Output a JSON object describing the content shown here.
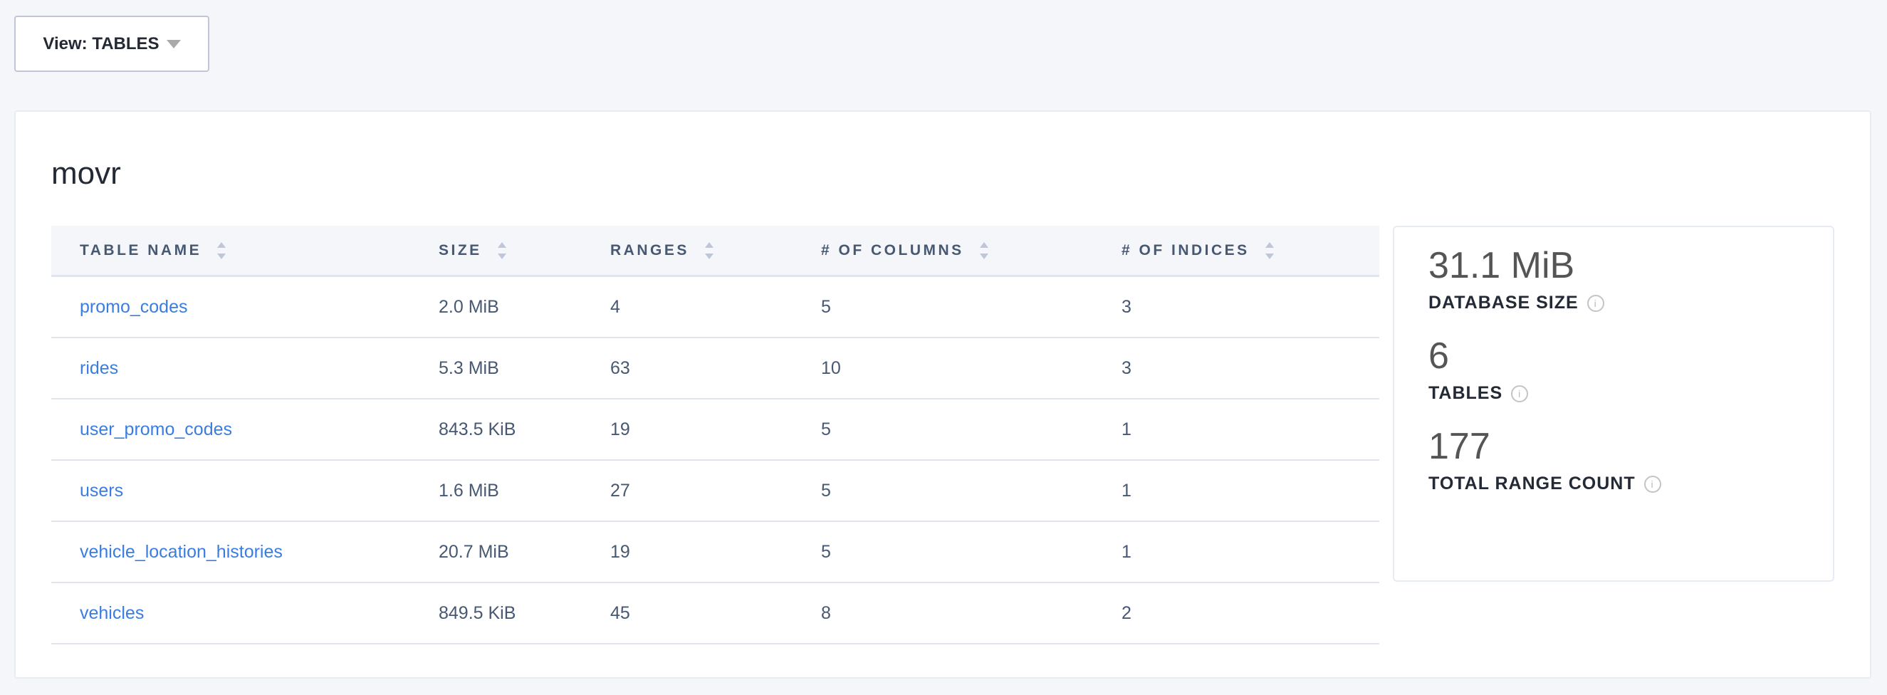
{
  "view_dropdown": {
    "label": "View: TABLES"
  },
  "database": {
    "name": "movr"
  },
  "table": {
    "columns": [
      "TABLE NAME",
      "SIZE",
      "RANGES",
      "# OF COLUMNS",
      "# OF INDICES"
    ],
    "rows": [
      [
        "promo_codes",
        "2.0 MiB",
        "4",
        "5",
        "3"
      ],
      [
        "rides",
        "5.3 MiB",
        "63",
        "10",
        "3"
      ],
      [
        "user_promo_codes",
        "843.5 KiB",
        "19",
        "5",
        "1"
      ],
      [
        "users",
        "1.6 MiB",
        "27",
        "5",
        "1"
      ],
      [
        "vehicle_location_histories",
        "20.7 MiB",
        "19",
        "5",
        "1"
      ],
      [
        "vehicles",
        "849.5 KiB",
        "45",
        "8",
        "2"
      ]
    ]
  },
  "summary": [
    {
      "value": "31.1 MiB",
      "label": "DATABASE SIZE"
    },
    {
      "value": "6",
      "label": "TABLES"
    },
    {
      "value": "177",
      "label": "TOTAL RANGE COUNT"
    }
  ],
  "colors": {
    "link": "#3a7de1",
    "text": "#475872",
    "background": "#f5f6fa"
  }
}
